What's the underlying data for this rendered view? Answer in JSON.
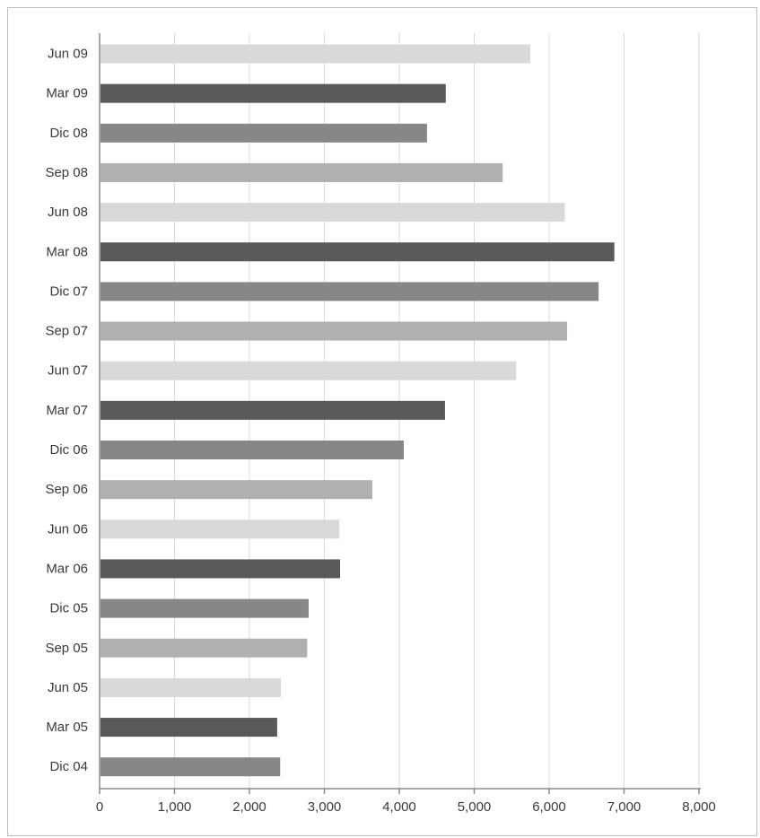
{
  "chart_data": {
    "type": "bar",
    "orientation": "horizontal",
    "title": "",
    "xlabel": "",
    "ylabel": "",
    "categories": [
      "Jun 09",
      "Mar 09",
      "Dic 08",
      "Sep 08",
      "Jun 08",
      "Mar 08",
      "Dic 07",
      "Sep 07",
      "Jun 07",
      "Mar 07",
      "Dic 06",
      "Sep 06",
      "Jun 06",
      "Mar 06",
      "Dic 05",
      "Sep 05",
      "Jun 05",
      "Mar 05",
      "Dic 04"
    ],
    "values": [
      5750,
      4620,
      4370,
      5380,
      6210,
      6870,
      6660,
      6240,
      5560,
      4610,
      4060,
      3640,
      3200,
      3210,
      2790,
      2770,
      2420,
      2370,
      2410
    ],
    "xlim": [
      0,
      8000
    ],
    "xticks": [
      0,
      1000,
      2000,
      3000,
      4000,
      5000,
      6000,
      7000,
      8000
    ],
    "xtick_labels": [
      "0",
      "1,000",
      "2,000",
      "3,000",
      "4,000",
      "5,000",
      "6,000",
      "7,000",
      "8,000"
    ],
    "grid": "vertical",
    "legend": "none",
    "colors": {
      "jun": "#d9d9d9",
      "mar": "#595959",
      "dic": "#878787",
      "sep": "#b0b0b0"
    },
    "bar_color_cycle": [
      "jun",
      "mar",
      "dic",
      "sep"
    ]
  }
}
